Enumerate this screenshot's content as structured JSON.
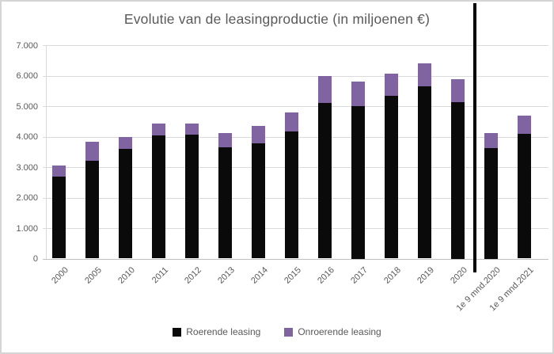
{
  "chart_data": {
    "type": "bar",
    "stacked": true,
    "title": "Evolutie van de leasingproductie  (in miljoenen €)",
    "categories": [
      "2000",
      "2005",
      "2010",
      "2011",
      "2012",
      "2013",
      "2014",
      "2015",
      "2016",
      "2017",
      "2018",
      "2019",
      "2020",
      "1e 9 mnd.2020",
      "1e 9 mnd.2021"
    ],
    "series": [
      {
        "name": "Roerende leasing",
        "color": "#0a0a0a",
        "values": [
          2700,
          3200,
          3600,
          4050,
          4075,
          3650,
          3775,
          4175,
          5100,
          5000,
          5350,
          5650,
          5125,
          3625,
          4100
        ]
      },
      {
        "name": "Onroerende leasing",
        "color": "#8064a2",
        "values": [
          350,
          625,
          400,
          375,
          350,
          475,
          575,
          625,
          900,
          800,
          725,
          750,
          750,
          500,
          600
        ]
      }
    ],
    "y_axis": {
      "min": 0,
      "max": 7000,
      "step": 1000,
      "tick_labels": [
        "0",
        "1.000",
        "2.000",
        "3.000",
        "4.000",
        "5.000",
        "6.000",
        "7.000"
      ]
    },
    "xlabel": "",
    "ylabel": "",
    "grid": true,
    "legend_position": "bottom",
    "divider": {
      "after_category_index": 12,
      "color": "#000000"
    },
    "colors": {
      "text": "#595959",
      "gridline": "#dadada",
      "axis": "#bfbfbf"
    }
  }
}
